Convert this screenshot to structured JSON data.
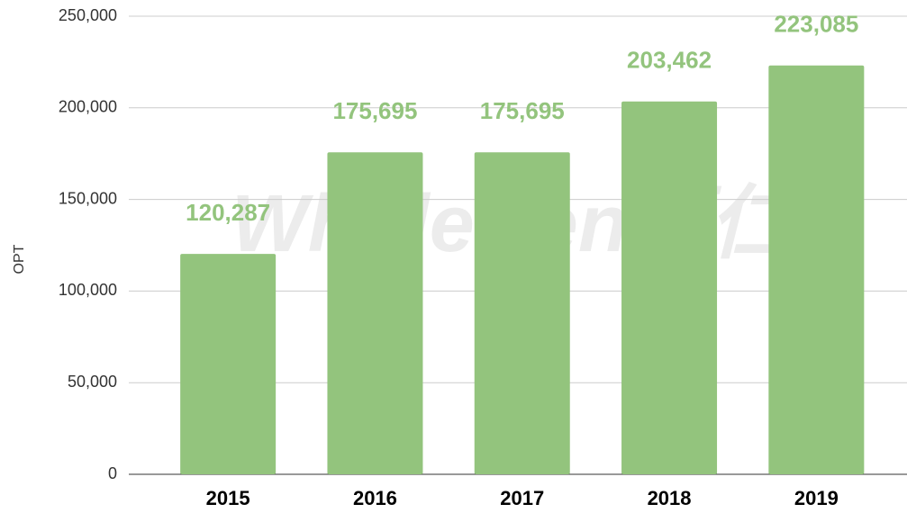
{
  "chart_data": {
    "type": "bar",
    "categories": [
      "2015",
      "2016",
      "2017",
      "2018",
      "2019"
    ],
    "values": [
      120287,
      175695,
      175695,
      203462,
      223085
    ],
    "value_labels": [
      "120,287",
      "175,695",
      "175,695",
      "203,462",
      "223,085"
    ],
    "color": "#93c47d",
    "y_label": "OPT",
    "ylim": [
      0,
      250000
    ],
    "yticks": [
      0,
      {
        "value": 50000,
        "label": "50,000"
      },
      {
        "value": 100000,
        "label": "100,000"
      },
      {
        "value": 150000,
        "label": "150,000"
      },
      {
        "value": 200000,
        "label": "200,000"
      },
      {
        "value": 250000,
        "label": "250,000"
      }
    ],
    "grid": true,
    "watermark": "WholeRen厚仁®"
  }
}
